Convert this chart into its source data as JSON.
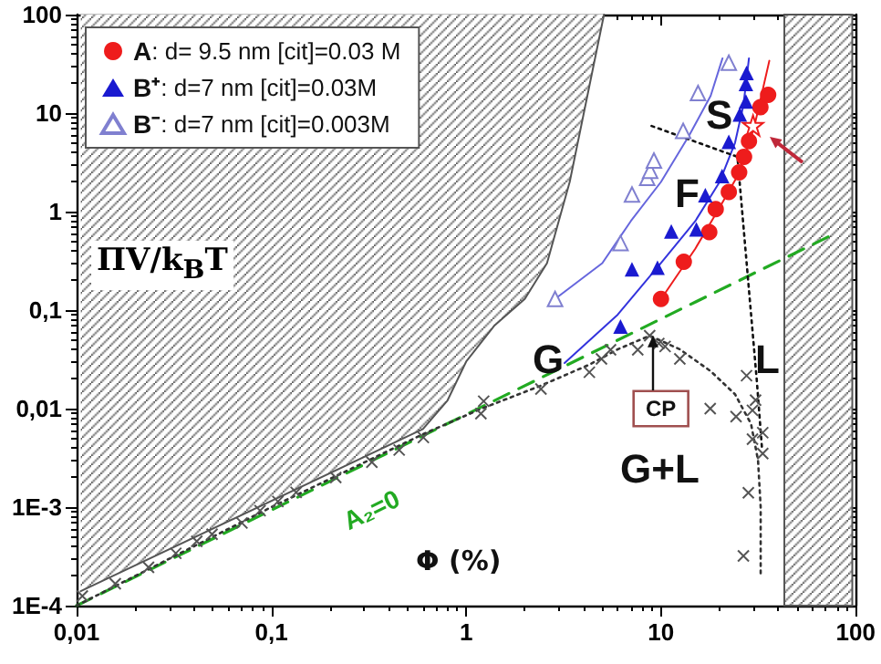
{
  "chart_data": {
    "type": "scatter",
    "xlabel": "Φ (%)",
    "ylabel": "ΠV/k$_{B}$T",
    "xlim": [
      0.01,
      100
    ],
    "ylim": [
      0.0001,
      100
    ],
    "log": "xy",
    "grid": false,
    "legend": "top left",
    "xticks": [
      {
        "value": 0.01,
        "label": "0,01"
      },
      {
        "value": 0.1,
        "label": "0,1"
      },
      1,
      10,
      100
    ],
    "yticks": [
      {
        "value": 0.0001,
        "label": "1E-4"
      },
      {
        "value": 0.001,
        "label": "1E-3"
      },
      {
        "value": 0.01,
        "label": "0,01"
      },
      {
        "value": 0.1,
        "label": "0,1"
      },
      1,
      10,
      100
    ],
    "annotations": [
      "S",
      "F",
      "G",
      "L",
      "G+L",
      "CP",
      "A₂=0"
    ],
    "bands": [
      {
        "axis": "x",
        "from": 43,
        "to": 96,
        "color": "#555555"
      }
    ],
    "series": [
      {
        "name": "A: d= 9.5 nm [cit]=0.03 M",
        "color": "#ee1c1c",
        "marker": "circle",
        "x": [
          10,
          13.1,
          17.7,
          19.1,
          22.3,
          25.2,
          26.7,
          28.3,
          32.4,
          35.5
        ],
        "values": [
          0.13,
          0.31,
          0.62,
          1.06,
          1.58,
          2.5,
          3.6,
          5.2,
          11.5,
          15.3
        ]
      },
      {
        "name": "B⁺: d=7 nm [cit]=0.03M",
        "color": "#1a1ad0",
        "marker": "triangle",
        "x": [
          6.2,
          7.1,
          9.6,
          11.3,
          15.2,
          16.9,
          20.6,
          22.3,
          25.4,
          27.3,
          27.3,
          27.5
        ],
        "values": [
          0.068,
          0.26,
          0.27,
          0.63,
          0.66,
          1.47,
          2.3,
          5.1,
          9.7,
          13.1,
          19.8,
          25.5
        ]
      },
      {
        "name": "B⁻: d=7 nm [cit]=0.003M",
        "color": "#8080d0",
        "marker": "triangle",
        "x": [
          2.86,
          6.2,
          7.1,
          8.5,
          8.8,
          9.2,
          13,
          15.5,
          22.3
        ],
        "values": [
          0.13,
          0.48,
          1.49,
          2.2,
          2.6,
          3.3,
          6.6,
          16,
          32.5
        ]
      },
      {
        "color": "#ee1c1c",
        "marker": "star",
        "x": [
          29.7
        ],
        "values": [
          7.5
        ]
      },
      {
        "color": "#555555",
        "marker": "cross",
        "x": [
          0.0107,
          0.0158,
          0.0234,
          0.0323,
          0.0414,
          0.0496,
          0.0706,
          0.0875,
          0.108,
          0.134,
          0.214,
          0.328,
          0.453,
          0.603,
          1.19,
          1.23,
          2.42,
          4.29,
          4.95,
          5.51,
          7.6,
          8.75,
          9.75,
          10.5,
          12.5,
          17.9,
          24.3,
          27.5,
          29.5,
          30.6,
          29.5,
          33.3,
          33.3,
          28.1,
          26.5
        ],
        "values": [
          0.000125,
          0.000167,
          0.000245,
          0.00034,
          0.00045,
          0.00053,
          0.00069,
          0.00092,
          0.00114,
          0.00141,
          0.002,
          0.00286,
          0.0038,
          0.0051,
          0.0089,
          0.0119,
          0.0158,
          0.0234,
          0.032,
          0.0396,
          0.0396,
          0.055,
          0.0458,
          0.0427,
          0.032,
          0.01,
          0.0083,
          0.0216,
          0.0096,
          0.0122,
          0.0049,
          0.0057,
          0.0035,
          0.0014,
          0.00032
        ]
      },
      {
        "type": "line",
        "color": "#ee1c1c",
        "marker": "none",
        "line_style": "solid",
        "x": [
          9.75,
          15,
          20,
          25,
          30,
          36
        ],
        "values": [
          0.12,
          0.42,
          1.1,
          2.4,
          7,
          34
        ]
      },
      {
        "type": "line",
        "color": "#3333dd",
        "marker": "none",
        "line_style": "solid",
        "x": [
          3.2,
          6,
          10,
          15,
          20,
          24,
          26.5,
          28.3
        ],
        "values": [
          0.029,
          0.09,
          0.3,
          0.8,
          2,
          5,
          12,
          36
        ]
      },
      {
        "type": "line",
        "color": "#6666dd",
        "marker": "none",
        "line_style": "solid",
        "x": [
          2.86,
          5,
          7,
          10,
          14,
          18,
          20.7
        ],
        "values": [
          0.13,
          0.3,
          0.8,
          2,
          6,
          15,
          36
        ]
      },
      {
        "type": "line",
        "color": "#22aa22",
        "marker": "none",
        "line_style": "dashed",
        "x": [
          0.01,
          77
        ],
        "values": [
          0.0001,
          0.59
        ]
      },
      {
        "type": "line",
        "color": "#333333",
        "marker": "none",
        "line_style": "dotted",
        "x": [
          0.01,
          0.1,
          0.6,
          1.2,
          2.4,
          4.3,
          6,
          8.75,
          12.5,
          18,
          24,
          29,
          31.5,
          32.5,
          32.5
        ],
        "values": [
          0.0001,
          0.001,
          0.0055,
          0.01,
          0.017,
          0.028,
          0.04,
          0.055,
          0.04,
          0.024,
          0.014,
          0.007,
          0.003,
          0.001,
          0.0002
        ]
      },
      {
        "type": "line",
        "color": "#111111",
        "marker": "none",
        "line_style": "dotted",
        "x": [
          8.95,
          24.7,
          31,
          33
        ],
        "values": [
          7.4,
          3.6,
          0.02,
          0.004
        ]
      },
      {
        "type": "line",
        "color": "#555555",
        "marker": "none",
        "line_style": "solid",
        "x": [
          0.0105,
          0.6,
          0.8,
          1,
          1.4,
          2,
          2.6,
          3.4,
          5.1
        ],
        "values": [
          0.00014,
          0.0062,
          0.012,
          0.03,
          0.07,
          0.13,
          0.3,
          2,
          100
        ]
      }
    ]
  }
}
